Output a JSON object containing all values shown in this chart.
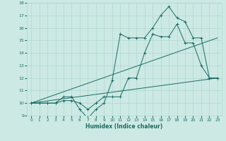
{
  "xlabel": "Humidex (Indice chaleur)",
  "background_color": "#cce9e4",
  "grid_color": "#b0d8d0",
  "line_color": "#1a6b62",
  "xlim": [
    -0.5,
    23.5
  ],
  "ylim": [
    9,
    18
  ],
  "xticks": [
    0,
    1,
    2,
    3,
    4,
    5,
    6,
    7,
    8,
    9,
    10,
    11,
    12,
    13,
    14,
    15,
    16,
    17,
    18,
    19,
    20,
    21,
    22,
    23
  ],
  "yticks": [
    9,
    10,
    11,
    12,
    13,
    14,
    15,
    16,
    17,
    18
  ],
  "curve1_x": [
    0,
    1,
    2,
    3,
    4,
    5,
    6,
    7,
    8,
    9,
    10,
    11,
    12,
    13,
    14,
    15,
    16,
    17,
    18,
    19,
    20,
    21,
    22,
    23
  ],
  "curve1_y": [
    10,
    10,
    10,
    10,
    10.5,
    10.5,
    9.5,
    8.8,
    9.5,
    10,
    11.8,
    15.5,
    15.2,
    15.2,
    15.2,
    16,
    17,
    17.7,
    16.8,
    16.5,
    15.2,
    15.2,
    12,
    12
  ],
  "curve2_x": [
    0,
    1,
    2,
    3,
    4,
    5,
    6,
    7,
    8,
    9,
    10,
    11,
    12,
    13,
    14,
    15,
    16,
    17,
    18,
    19,
    20,
    21,
    22,
    23
  ],
  "curve2_y": [
    10,
    10,
    10,
    10,
    10.2,
    10.2,
    10,
    9.5,
    10,
    10.5,
    10.5,
    10.5,
    12,
    12,
    14,
    15.5,
    15.3,
    15.3,
    16.3,
    14.8,
    14.8,
    13,
    12,
    12
  ],
  "line3_x": [
    0,
    23
  ],
  "line3_y": [
    10,
    12
  ],
  "line4_x": [
    0,
    23
  ],
  "line4_y": [
    10,
    15.2
  ]
}
